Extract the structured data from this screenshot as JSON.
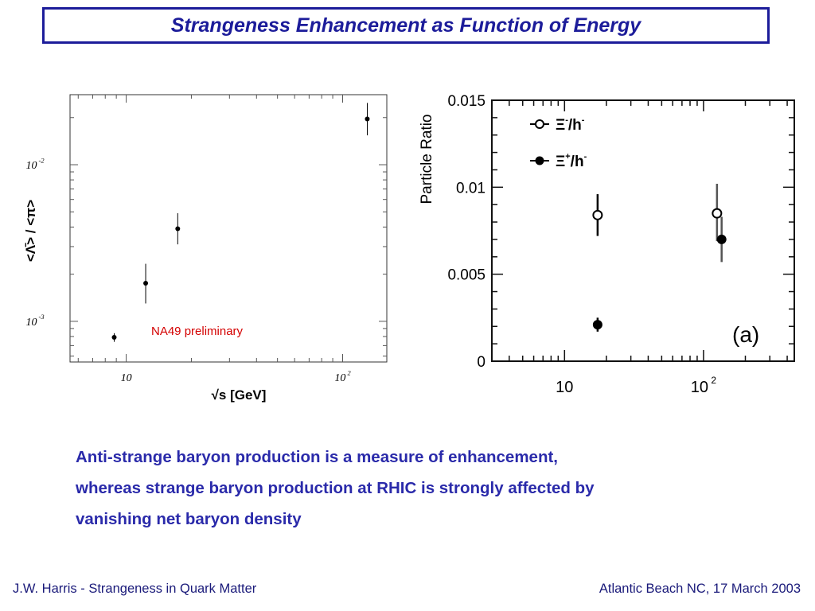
{
  "slide": {
    "title": "Strangeness Enhancement as Function of Energy",
    "body": [
      "Anti-strange baryon production is a measure of enhancement,",
      "whereas strange baryon production at RHIC is strongly affected by",
      "vanishing net baryon density"
    ],
    "footer_left": "J.W. Harris - Strangeness in Quark Matter",
    "footer_right": "Atlantic Beach NC, 17 March 2003",
    "colors": {
      "title": "#1c1c9a",
      "body": "#2a2aaa",
      "footer": "#1a1a7a",
      "annotation": "#d40000"
    }
  },
  "chart_data": [
    {
      "type": "scatter",
      "ylabel": "<Λ̄> / <π>",
      "xlabel": "√s [GeV]",
      "x_scale": "log",
      "y_scale": "log",
      "xlim": [
        5.5,
        160
      ],
      "ylim": [
        0.00055,
        0.028
      ],
      "x_ticks": [
        {
          "value": 10,
          "base": "10",
          "exp": ""
        },
        {
          "value": 100,
          "base": "10",
          "exp": "2"
        }
      ],
      "y_ticks": [
        {
          "value": 0.001,
          "base": "10",
          "exp": "-3"
        },
        {
          "value": 0.01,
          "base": "10",
          "exp": "-2"
        }
      ],
      "annotation": "NA49 preliminary",
      "series": [
        {
          "points": [
            {
              "x": 8.8,
              "y": 0.00079,
              "err_lo": 5e-05,
              "err_hi": 5e-05
            },
            {
              "x": 12.3,
              "y": 0.00175,
              "err_lo": 0.00045,
              "err_hi": 0.00058
            },
            {
              "x": 17.3,
              "y": 0.0039,
              "err_lo": 0.0008,
              "err_hi": 0.001
            },
            {
              "x": 130,
              "y": 0.0196,
              "err_lo": 0.0042,
              "err_hi": 0.0052
            }
          ]
        }
      ]
    },
    {
      "type": "scatter",
      "ylabel": "Particle Ratio",
      "x_scale": "log",
      "y_scale": "linear",
      "xlim": [
        3,
        450
      ],
      "ylim": [
        0,
        0.015
      ],
      "y_ticks": [
        "0",
        "0.005",
        "0.01",
        "0.015"
      ],
      "x_ticks": [
        {
          "value": 10,
          "base": "10",
          "exp": ""
        },
        {
          "value": 100,
          "base": "10",
          "exp": "2"
        }
      ],
      "panel_label": "(a)",
      "series": [
        {
          "name": "Ξ⁻/h⁻",
          "legend_symbol": "Ξ",
          "legend_sup": "-",
          "legend_rest": "/h",
          "legend_rest_sup": "-",
          "marker": "open",
          "points": [
            {
              "x": 17.3,
              "y": 0.0084,
              "err_lo": 0.0012,
              "err_hi": 0.0012
            },
            {
              "x": 125,
              "y": 0.0085,
              "err_lo": 0.0016,
              "err_hi": 0.0017
            }
          ]
        },
        {
          "name": "Ξ̄⁺/h⁻",
          "legend_symbol": "Ξ",
          "legend_sup": "+",
          "legend_rest": "/h",
          "legend_rest_sup": "-",
          "marker": "filled",
          "points": [
            {
              "x": 17.3,
              "y": 0.0021,
              "err_lo": 0.0004,
              "err_hi": 0.0004
            },
            {
              "x": 135,
              "y": 0.007,
              "err_lo": 0.0013,
              "err_hi": 0.0013
            }
          ]
        }
      ]
    }
  ]
}
